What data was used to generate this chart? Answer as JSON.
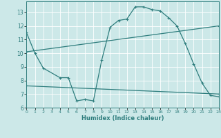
{
  "xlabel": "Humidex (Indice chaleur)",
  "xlim": [
    0,
    23
  ],
  "ylim": [
    6,
    13.8
  ],
  "yticks": [
    6,
    7,
    8,
    9,
    10,
    11,
    12,
    13
  ],
  "xticks": [
    0,
    1,
    2,
    3,
    4,
    5,
    6,
    7,
    8,
    9,
    10,
    11,
    12,
    13,
    14,
    15,
    16,
    17,
    18,
    19,
    20,
    21,
    22,
    23
  ],
  "bg_color": "#cce8e8",
  "line_color": "#2e7d7d",
  "grid_color": "#ffffff",
  "line1_x": [
    0,
    1,
    2,
    4,
    5,
    6,
    7,
    8,
    9,
    10,
    11,
    12,
    13,
    14,
    15,
    16,
    17,
    18,
    19,
    20,
    21,
    22,
    23
  ],
  "line1_y": [
    11.5,
    10.0,
    8.9,
    8.2,
    8.2,
    6.5,
    6.6,
    6.5,
    9.5,
    11.9,
    12.4,
    12.5,
    13.4,
    13.4,
    13.2,
    13.1,
    12.6,
    12.0,
    10.7,
    9.2,
    7.8,
    6.9,
    6.8
  ],
  "line2_x": [
    0,
    23
  ],
  "line2_y": [
    10.1,
    12.0
  ],
  "line3_x": [
    0,
    23
  ],
  "line3_y": [
    7.6,
    7.0
  ]
}
